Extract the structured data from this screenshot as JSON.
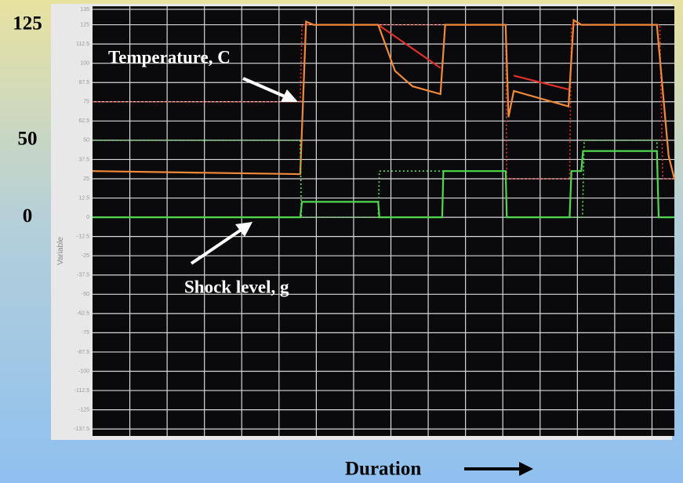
{
  "chart_data": {
    "type": "line",
    "y_axis_label": "Variable",
    "x_axis_label": "Duration",
    "annotations": [
      "Temperature, C",
      "Shock level, g"
    ],
    "side_labels": [
      125,
      50,
      0
    ],
    "xlim": [
      0,
      100
    ],
    "ylim": [
      -142,
      137
    ],
    "yticks": [
      135,
      125,
      112.5,
      100,
      87.5,
      75,
      62.5,
      50,
      37.5,
      25,
      12.5,
      0,
      -12.5,
      -25,
      -37.5,
      -50,
      -62.5,
      -75,
      -87.5,
      -100,
      -112.5,
      -125,
      -137.5
    ],
    "grid": true,
    "series": [
      {
        "color": "#e8332a",
        "style": "dotted",
        "x": [
          0,
          35.7,
          36,
          71,
          71.2,
          82,
          82.3,
          97.5,
          98,
          100
        ],
        "values": [
          75,
          75,
          125,
          125,
          25,
          25,
          125,
          125,
          25,
          25
        ]
      },
      {
        "color": "#e0302a",
        "style": "solid",
        "x": [
          49.1,
          59.8,
          60,
          72.4,
          81.8
        ],
        "values": [
          125,
          97,
          null,
          92,
          83
        ]
      },
      {
        "color": "#f08a3a",
        "style": "solid",
        "x": [
          0,
          35.7,
          36.7,
          38,
          49.1,
          52,
          55,
          59.8,
          60.6,
          71,
          71.5,
          72.4,
          81.8,
          82.7,
          84,
          97,
          99,
          100
        ],
        "values": [
          30,
          28,
          127,
          125,
          125,
          95,
          85,
          80,
          125,
          125,
          65,
          82,
          72,
          128,
          125,
          125,
          40,
          25
        ]
      },
      {
        "color": "#5fe05f",
        "style": "dotted",
        "x": [
          0,
          35.7,
          35.9,
          49.1,
          49.3,
          71,
          71.2,
          84.2,
          84.5,
          97,
          97.3,
          100
        ],
        "values": [
          50,
          50,
          0,
          0,
          30,
          30,
          0,
          0,
          50,
          50,
          0,
          0
        ]
      },
      {
        "color": "#4fd84f",
        "style": "solid",
        "x": [
          0,
          35.7,
          36,
          49.1,
          49.3,
          60.1,
          60.3,
          71,
          71.2,
          82,
          82.3,
          84,
          84.3,
          97,
          97.3,
          100
        ],
        "values": [
          0,
          0,
          10,
          10,
          0,
          0,
          30,
          30,
          0,
          0,
          30,
          30,
          43,
          43,
          0,
          0
        ]
      }
    ]
  }
}
